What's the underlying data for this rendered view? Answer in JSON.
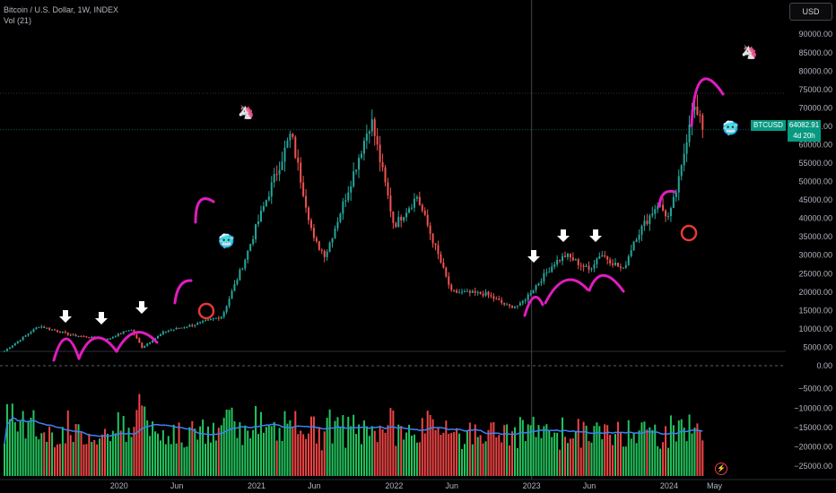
{
  "legend": {
    "symbol": "Bitcoin / U.S. Dollar, 1W, INDEX",
    "indicator": "Vol (21)"
  },
  "currency_button": "USD",
  "last_price": {
    "ticker": "BTCUSD",
    "value": "64082.91",
    "countdown": "4d 20h"
  },
  "icons": [
    "unicorn-icon",
    "cold-face-icon",
    "lightning-icon",
    "down-arrow-icon"
  ],
  "chart_data": [
    {
      "type": "candlestick",
      "title": "Bitcoin / U.S. Dollar, 1W, INDEX",
      "x_tick_labels": [
        "2020",
        "Jun",
        "2021",
        "Jun",
        "2022",
        "Jun",
        "2023",
        "Jun",
        "2024",
        "May"
      ],
      "y_tick_labels": [
        "90000.00",
        "85000.00",
        "80000.00",
        "75000.00",
        "70000.00",
        "65000.00",
        "60000.00",
        "55000.00",
        "50000.00",
        "45000.00",
        "40000.00",
        "35000.00",
        "30000.00",
        "25000.00",
        "20000.00",
        "15000.00",
        "10000.00",
        "5000.00",
        "0.00"
      ],
      "ylim": [
        0,
        92000
      ],
      "time_range": [
        "2019-03",
        "2024-04"
      ],
      "colors": {
        "up": "#26a69a",
        "down": "#ef5350"
      },
      "close_path": [
        {
          "date": "2019-03",
          "close": 4000
        },
        {
          "date": "2019-06",
          "close": 10800
        },
        {
          "date": "2019-09",
          "close": 8200
        },
        {
          "date": "2019-12",
          "close": 7200
        },
        {
          "date": "2020-02",
          "close": 10000
        },
        {
          "date": "2020-03",
          "close": 5000
        },
        {
          "date": "2020-05",
          "close": 9300
        },
        {
          "date": "2020-08",
          "close": 11500
        },
        {
          "date": "2020-10",
          "close": 13500
        },
        {
          "date": "2020-12",
          "close": 29000
        },
        {
          "date": "2021-01",
          "close": 38000
        },
        {
          "date": "2021-04",
          "close": 63000
        },
        {
          "date": "2021-06",
          "close": 34000
        },
        {
          "date": "2021-07",
          "close": 30000
        },
        {
          "date": "2021-09",
          "close": 48000
        },
        {
          "date": "2021-11",
          "close": 67000
        },
        {
          "date": "2022-01",
          "close": 38000
        },
        {
          "date": "2022-03",
          "close": 46000
        },
        {
          "date": "2022-06",
          "close": 20000
        },
        {
          "date": "2022-09",
          "close": 19500
        },
        {
          "date": "2022-11",
          "close": 16000
        },
        {
          "date": "2022-12",
          "close": 16500
        },
        {
          "date": "2023-03",
          "close": 28000
        },
        {
          "date": "2023-04",
          "close": 30000
        },
        {
          "date": "2023-06",
          "close": 26000
        },
        {
          "date": "2023-07",
          "close": 30500
        },
        {
          "date": "2023-09",
          "close": 26000
        },
        {
          "date": "2023-10",
          "close": 34500
        },
        {
          "date": "2023-12",
          "close": 44000
        },
        {
          "date": "2024-01",
          "close": 40000
        },
        {
          "date": "2024-02",
          "close": 52000
        },
        {
          "date": "2024-03",
          "close": 71000
        },
        {
          "date": "2024-04",
          "close": 64082.91
        }
      ]
    },
    {
      "type": "bar",
      "title": "Vol (21)",
      "y_tick_labels": [
        "−5000.00",
        "−10000.00",
        "−15000.00",
        "−20000.00",
        "−25000.00"
      ],
      "ylim": [
        -27500,
        0
      ],
      "moving_average_period": 21,
      "colors": {
        "up": "#22c55e",
        "down": "#ef4444",
        "ma": "#3b82f6"
      }
    }
  ]
}
